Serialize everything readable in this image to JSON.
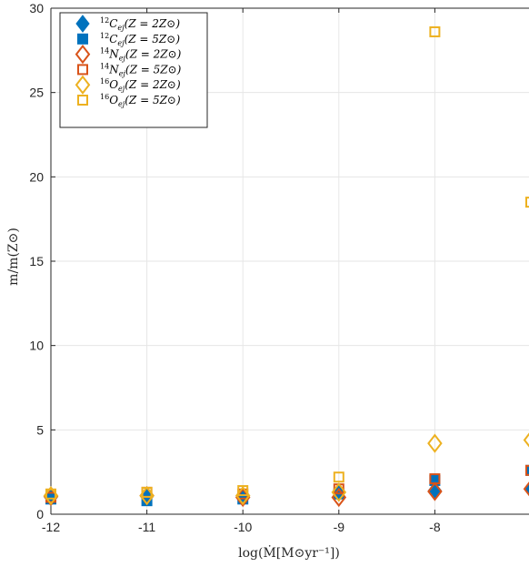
{
  "chart_data": {
    "type": "scatter",
    "xlabel": "log(Ṁ[M⊙yr⁻¹])",
    "ylabel": "m/m(Z⊙)",
    "xlim": [
      -12,
      -7
    ],
    "ylim": [
      0,
      30
    ],
    "xticks": [
      -12,
      -11,
      -10,
      -9,
      -8,
      -7
    ],
    "xtick_labels": [
      "-12",
      "-11",
      "-10",
      "-9",
      "-8",
      "-"
    ],
    "yticks": [
      0,
      5,
      10,
      15,
      20,
      25,
      30
    ],
    "ytick_labels": [
      "0",
      "5",
      "10",
      "15",
      "20",
      "25",
      "30"
    ],
    "grid": true,
    "legend_position": "top-left",
    "x": [
      -12,
      -11,
      -10,
      -9,
      -8,
      -7
    ],
    "series": [
      {
        "name": "¹²C_ej(Z = 2Z⊙)",
        "marker": "diamond-filled",
        "color": "#0072BD",
        "values": [
          1.0,
          1.05,
          1.0,
          1.3,
          1.4,
          1.5
        ]
      },
      {
        "name": "¹²C_ej(Z = 5Z⊙)",
        "marker": "square-filled",
        "color": "#0072BD",
        "values": [
          0.9,
          0.8,
          0.9,
          1.2,
          2.0,
          2.6
        ]
      },
      {
        "name": "¹⁴N_ej(Z = 2Z⊙)",
        "marker": "diamond-open",
        "color": "#D95319",
        "values": [
          1.05,
          1.1,
          1.0,
          1.0,
          1.35,
          1.5
        ]
      },
      {
        "name": "¹⁴N_ej(Z = 5Z⊙)",
        "marker": "square-open",
        "color": "#D95319",
        "values": [
          1.0,
          1.3,
          1.2,
          1.5,
          2.1,
          2.6
        ]
      },
      {
        "name": "¹⁶O_ej(Z = 2Z⊙)",
        "marker": "diamond-open",
        "color": "#EDB120",
        "values": [
          1.1,
          1.1,
          1.1,
          1.3,
          4.2,
          4.4
        ]
      },
      {
        "name": "¹⁶O_ej(Z = 5Z⊙)",
        "marker": "square-open",
        "color": "#EDB120",
        "values": [
          1.2,
          1.3,
          1.4,
          2.2,
          28.6,
          18.5
        ]
      }
    ]
  },
  "legend": {
    "entries": [
      {
        "iso": "12",
        "el": "C",
        "sub": "ej",
        "z": "(Z = 2Z⊙)"
      },
      {
        "iso": "12",
        "el": "C",
        "sub": "ej",
        "z": "(Z = 5Z⊙)"
      },
      {
        "iso": "14",
        "el": "N",
        "sub": "ej",
        "z": "(Z = 2Z⊙)"
      },
      {
        "iso": "14",
        "el": "N",
        "sub": "ej",
        "z": "(Z = 5Z⊙)"
      },
      {
        "iso": "16",
        "el": "O",
        "sub": "ej",
        "z": "(Z = 2Z⊙)"
      },
      {
        "iso": "16",
        "el": "O",
        "sub": "ej",
        "z": "(Z = 5Z⊙)"
      }
    ]
  }
}
